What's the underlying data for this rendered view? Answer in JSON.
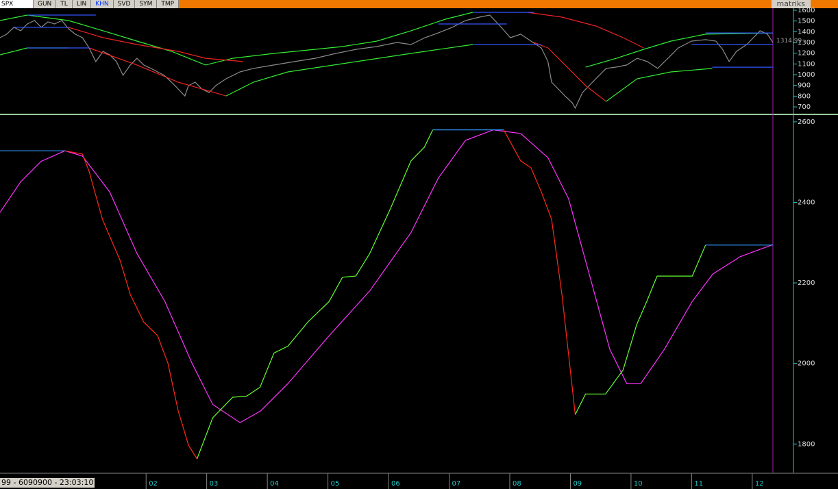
{
  "toolbar": {
    "symbol": "SPX",
    "buttons": [
      "GUN",
      "TL",
      "LIN",
      "KHN",
      "SVD",
      "SYM",
      "TMP"
    ],
    "brand": "matriks"
  },
  "status": "99 - 6090900 - 23:03:10",
  "chart_data": [
    {
      "type": "line",
      "last_value": 1314.99,
      "xlim": [
        1999.59,
        2012.68
      ],
      "ylim": [
        643,
        1619
      ],
      "yticks": [
        1600,
        1500,
        1400,
        1300,
        1200,
        1100,
        1000,
        900,
        800,
        700
      ],
      "series": [
        {
          "color": "#8c8c8c",
          "x": [
            1999.59,
            1999.7,
            1999.82,
            1999.93,
            2000.04,
            2000.16,
            2000.27,
            2000.38,
            2000.49,
            2000.61,
            2000.72,
            2000.83,
            2000.95,
            2001.06,
            2001.17,
            2001.29,
            2001.4,
            2001.51,
            2001.62,
            2001.74,
            2001.85,
            2001.96,
            2002.08,
            2002.19,
            2002.3,
            2002.42,
            2002.53,
            2002.64,
            2002.7,
            2002.81,
            2002.92,
            2003.04,
            2003.15,
            2003.32,
            2003.55,
            2003.77,
            2004.11,
            2004.45,
            2004.79,
            2005.13,
            2005.47,
            2005.8,
            2006.14,
            2006.37,
            2006.6,
            2006.82,
            2007.05,
            2007.27,
            2007.5,
            2007.67,
            2007.84,
            2008.01,
            2008.18,
            2008.35,
            2008.52,
            2008.63,
            2008.69,
            2008.8,
            2008.91,
            2009.03,
            2009.08,
            2009.2,
            2009.31,
            2009.42,
            2009.59,
            2009.76,
            2009.93,
            2010.1,
            2010.27,
            2010.44,
            2010.61,
            2010.78,
            2011.0,
            2011.23,
            2011.4,
            2011.51,
            2011.62,
            2011.74,
            2011.91,
            2012.02,
            2012.13,
            2012.25,
            2012.34
          ],
          "values": [
            1345,
            1377,
            1441,
            1409,
            1472,
            1504,
            1441,
            1492,
            1472,
            1504,
            1428,
            1377,
            1345,
            1249,
            1122,
            1217,
            1185,
            1122,
            994,
            1090,
            1153,
            1090,
            1058,
            1026,
            994,
            930,
            866,
            802,
            898,
            930,
            866,
            834,
            898,
            962,
            1026,
            1058,
            1090,
            1122,
            1153,
            1198,
            1236,
            1262,
            1300,
            1281,
            1345,
            1389,
            1441,
            1504,
            1536,
            1555,
            1453,
            1345,
            1377,
            1313,
            1249,
            1122,
            930,
            866,
            802,
            739,
            688,
            834,
            898,
            962,
            1058,
            1071,
            1090,
            1153,
            1122,
            1058,
            1153,
            1249,
            1313,
            1326,
            1313,
            1236,
            1122,
            1217,
            1281,
            1345,
            1409,
            1377,
            1300
          ]
        },
        {
          "color": "#33ee33",
          "x": [
            1999.59,
            2000.04,
            2000.72,
            2001.29,
            2001.85,
            2002.42,
            2002.98,
            2003.43,
            2004.11,
            2004.68,
            2005.24,
            2005.81,
            2006.37,
            2006.94,
            2007.39,
            2008.18,
            2009.25,
            2009.76,
            2010.21,
            2010.66,
            2011.23,
            2012.34
          ],
          "values": [
            1504,
            1555,
            1504,
            1409,
            1313,
            1217,
            1090,
            1153,
            1198,
            1230,
            1262,
            1313,
            1409,
            1517,
            1581,
            null,
            1070,
            1153,
            1236,
            1313,
            1377,
            1389
          ]
        },
        {
          "color": "#33ee33",
          "x": [
            1999.59,
            2000.04,
            2000.72,
            2001.85,
            2003.32,
            2003.77,
            2004.34,
            2005.24,
            2006.37,
            2007.39,
            2008.4,
            2009.59,
            2010.1,
            2010.66,
            2011.34
          ],
          "values": [
            1185,
            1249,
            1249,
            null,
            802,
            930,
            1026,
            1102,
            1198,
            1281,
            null,
            751,
            962,
            1026,
            1058
          ]
        },
        {
          "color": "#ee2222",
          "x": [
            2000.72,
            2001.29,
            2001.85,
            2002.53,
            2002.98,
            2003.6,
            2005.24,
            2008.29,
            2008.86,
            2009.42,
            2009.87,
            2010.21
          ],
          "values": [
            1441,
            1345,
            1281,
            1217,
            1153,
            1122,
            null,
            1581,
            1536,
            1453,
            1345,
            1249
          ]
        },
        {
          "color": "#ee2222",
          "x": [
            2001.06,
            2001.85,
            2002.53,
            2003.32,
            2005.24,
            2008.4,
            2008.63,
            2008.97,
            2009.25,
            2009.59
          ],
          "values": [
            1249,
            1090,
            930,
            802,
            null,
            1300,
            1249,
            1058,
            898,
            751
          ]
        },
        {
          "color": "#3355ff",
          "x": [
            2000.04,
            2001.17,
            2004,
            2007.39,
            2008.4,
            2010,
            2011.23,
            2012.34
          ],
          "values": [
            1555,
            1555,
            null,
            1581,
            1581,
            null,
            1389,
            1389
          ]
        },
        {
          "color": "#3355ff",
          "x": [
            1999.82,
            2000.72,
            2004,
            2006.82,
            2007.95,
            2010,
            2011.0,
            2012.34
          ],
          "values": [
            1441,
            1441,
            null,
            1472,
            1472,
            null,
            1281,
            1281
          ]
        },
        {
          "color": "#3355ff",
          "x": [
            2000.04,
            2001.06,
            2004,
            2007.39,
            2008.52,
            2010,
            2011.34,
            2012.34
          ],
          "values": [
            1249,
            1249,
            null,
            1281,
            1281,
            null,
            1070,
            1070
          ]
        }
      ]
    },
    {
      "type": "line",
      "xlim": [
        1999.59,
        2012.68
      ],
      "ylim": [
        1729,
        2610
      ],
      "yticks": [
        2600,
        2400,
        2200,
        2000,
        1800
      ],
      "xticks": [
        {
          "value": 2002,
          "label": "02"
        },
        {
          "value": 2003,
          "label": "03"
        },
        {
          "value": 2004,
          "label": "04"
        },
        {
          "value": 2005,
          "label": "05"
        },
        {
          "value": 2006,
          "label": "06"
        },
        {
          "value": 2007,
          "label": "07"
        },
        {
          "value": 2008,
          "label": "08"
        },
        {
          "value": 2009,
          "label": "09"
        },
        {
          "value": 2010,
          "label": "10"
        },
        {
          "value": 2011,
          "label": "11"
        },
        {
          "value": 2012,
          "label": "12"
        }
      ],
      "series": [
        {
          "color": "#ff33ff",
          "x": [
            1999.59,
            1999.93,
            2000.27,
            2000.66,
            2000.95,
            2001.4,
            2001.85,
            2002.31,
            2002.76,
            2003.1,
            2003.55,
            2003.89,
            2004.34,
            2005.02,
            2005.69,
            2006.37,
            2006.82,
            2007.27,
            2007.73,
            2008.18,
            2008.63,
            2008.97,
            2009.31,
            2009.65,
            2009.93,
            2010.16,
            2010.55,
            2011.01,
            2011.35,
            2011.8,
            2012.34
          ],
          "values": [
            2375,
            2451,
            2502,
            2528,
            2515,
            2426,
            2273,
            2154,
            2000,
            1898,
            1853,
            1882,
            1950,
            2069,
            2180,
            2325,
            2460,
            2554,
            2580,
            2571,
            2511,
            2409,
            2222,
            2035,
            1950,
            1950,
            2035,
            2154,
            2222,
            2265,
            2295
          ]
        },
        {
          "color": "#ff2a1a",
          "x": [
            2000.66,
            2000.95,
            2001.06,
            2001.28,
            2001.57,
            2001.74,
            2001.96,
            2002.19,
            2002.36,
            2002.53,
            2002.7,
            2002.84,
            2005.0,
            2007.9,
            2008.18,
            2008.35,
            2008.52,
            2008.69,
            2008.86,
            2009.08
          ],
          "values": [
            2528,
            2520,
            2477,
            2358,
            2256,
            2171,
            2103,
            2069,
            2001,
            1882,
            1797,
            1763,
            null,
            2580,
            2503,
            2486,
            2426,
            2358,
            2171,
            1873
          ]
        },
        {
          "color": "#66ff33",
          "x": [
            2002.84,
            2003.1,
            2003.43,
            2003.66,
            2003.88,
            2004.11,
            2004.34,
            2004.67,
            2005.02,
            2005.24,
            2005.46,
            2005.69,
            2006.03,
            2006.37,
            2006.59,
            2006.73,
            2008.0,
            2009.08,
            2009.25,
            2009.58,
            2009.87,
            2010.09,
            2010.26,
            2010.43,
            2011.01,
            2011.23
          ],
          "values": [
            1763,
            1865,
            1916,
            1919,
            1941,
            2026,
            2043,
            2103,
            2154,
            2214,
            2217,
            2273,
            2384,
            2503,
            2537,
            2580,
            null,
            1873,
            1924,
            1924,
            1984,
            2095,
            2154,
            2217,
            2217,
            2294
          ]
        },
        {
          "color": "#3399ff",
          "x": [
            1999.59,
            2000.66,
            2003.0,
            2006.73,
            2007.9,
            2010.0,
            2011.23,
            2012.34
          ],
          "values": [
            2528,
            2528,
            null,
            2580,
            2580,
            null,
            2294,
            2294
          ]
        }
      ]
    }
  ]
}
